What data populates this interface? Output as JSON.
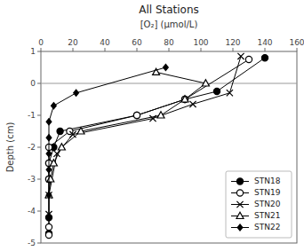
{
  "chart_data": {
    "type": "line",
    "title": "All Stations",
    "x_label": "[O₂] (μmol/L)",
    "y_label": "Depth (cm)",
    "xlim": [
      0,
      160
    ],
    "ylim": [
      -5,
      1
    ],
    "xticks": [
      0,
      20,
      40,
      60,
      80,
      100,
      120,
      140,
      160
    ],
    "yticks": [
      -5,
      -4,
      -3,
      -2,
      -1,
      0,
      1
    ],
    "x_axis_position": "top",
    "hline": 0,
    "grid": false,
    "legend": "lower right",
    "series": [
      {
        "name": "STN18",
        "color": "black",
        "marker": "circle",
        "line_style": "solid",
        "x": [
          140,
          110,
          90,
          60,
          12,
          8,
          5,
          5,
          5,
          5
        ],
        "values": [
          0.8,
          -0.25,
          -0.5,
          -1.0,
          -1.5,
          -2.0,
          -2.5,
          -3.0,
          -4.2,
          -4.7
        ]
      },
      {
        "name": "STN19",
        "color": "black",
        "marker": "open-circle",
        "line_style": "solid",
        "x": [
          130,
          90,
          60,
          18,
          5,
          5,
          5,
          5,
          5
        ],
        "values": [
          0.75,
          -0.5,
          -1.0,
          -1.5,
          -2.0,
          -2.5,
          -3.0,
          -4.5,
          -4.75
        ]
      },
      {
        "name": "STN20",
        "color": "black",
        "marker": "x",
        "line_style": "solid",
        "x": [
          125,
          118,
          95,
          70,
          20,
          10,
          5,
          5
        ],
        "values": [
          0.85,
          -0.3,
          -0.65,
          -1.1,
          -1.6,
          -2.2,
          -3.5,
          -4.1
        ]
      },
      {
        "name": "STN21",
        "color": "black",
        "marker": "open-triangle",
        "line_style": "solid",
        "x": [
          72,
          103,
          90,
          75,
          25,
          13,
          8,
          6,
          5
        ],
        "values": [
          0.35,
          0.0,
          -0.5,
          -1.0,
          -1.5,
          -2.0,
          -2.5,
          -3.0,
          -3.5
        ]
      },
      {
        "name": "STN22",
        "color": "black",
        "marker": "diamond",
        "line_style": "solid",
        "x": [
          78,
          22,
          8,
          5,
          5,
          5,
          5,
          5
        ],
        "values": [
          0.5,
          -0.3,
          -0.7,
          -1.2,
          -1.7,
          -2.2,
          -2.7,
          -3.5
        ]
      }
    ]
  }
}
